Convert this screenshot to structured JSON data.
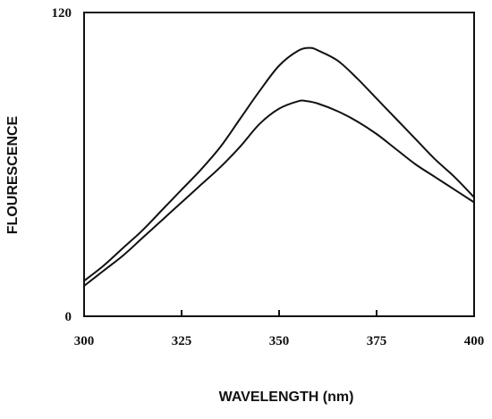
{
  "chart_data": {
    "type": "line",
    "xlabel": "WAVELENGTH (nm)",
    "ylabel": "FLOURESCENCE",
    "xlim": [
      300,
      400
    ],
    "ylim": [
      0,
      120
    ],
    "x_ticks": [
      "300",
      "325",
      "350",
      "375",
      "400"
    ],
    "y_ticks": [
      "0",
      "120"
    ],
    "grid": false,
    "colors": {
      "line": "#111111",
      "frame": "#111111",
      "background": "#ffffff"
    },
    "series": [
      {
        "x": [
          300,
          305,
          310,
          315,
          320,
          325,
          330,
          335,
          340,
          345,
          350,
          355,
          358,
          360,
          365,
          370,
          375,
          380,
          385,
          390,
          395,
          400
        ],
        "values": [
          14,
          20,
          27,
          34,
          42,
          50,
          58,
          67,
          78,
          89,
          99,
          105,
          106,
          105,
          101,
          94,
          86,
          78,
          70,
          62,
          55,
          47
        ]
      },
      {
        "x": [
          300,
          305,
          310,
          315,
          320,
          325,
          330,
          335,
          340,
          345,
          350,
          355,
          357,
          360,
          365,
          370,
          375,
          380,
          385,
          390,
          395,
          400
        ],
        "values": [
          12,
          18,
          24,
          31,
          38,
          45,
          52,
          59,
          67,
          76,
          82,
          85,
          85,
          84,
          81,
          77,
          72,
          66,
          60,
          55,
          50,
          45
        ]
      }
    ]
  }
}
